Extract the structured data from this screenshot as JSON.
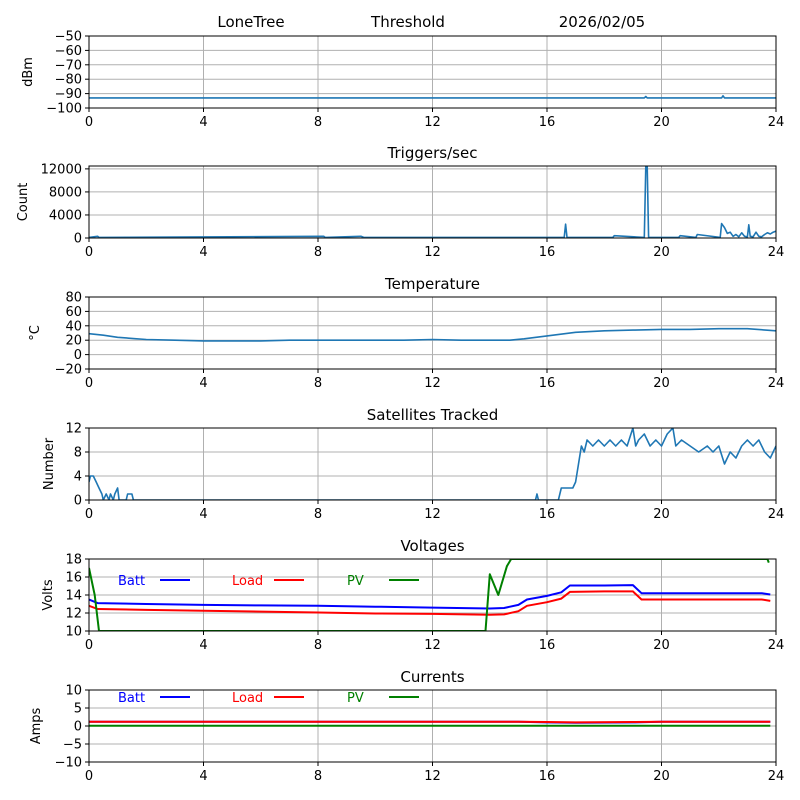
{
  "header": {
    "station": "LoneTree",
    "mode": "Threshold",
    "date": "2026/02/05"
  },
  "chart_data": [
    {
      "id": "signal",
      "type": "line",
      "title": "",
      "xlabel": "",
      "ylabel": "dBm",
      "xlim": [
        0,
        24
      ],
      "ylim": [
        -100,
        -50
      ],
      "xticks": [
        0,
        4,
        8,
        12,
        16,
        20,
        24
      ],
      "yticks": [
        -50,
        -60,
        -70,
        -80,
        -90,
        -100
      ],
      "ytick_labels": [
        "−50",
        "−60",
        "−70",
        "−80",
        "−90",
        "−100"
      ],
      "grid": true,
      "series": [
        {
          "name": "dBm",
          "color": "#1f77b4",
          "x": [
            0,
            19.4,
            19.45,
            19.5,
            22.1,
            22.15,
            22.2,
            24
          ],
          "y": [
            -93,
            -93,
            -92,
            -93,
            -93,
            -91.5,
            -93,
            -93
          ]
        }
      ]
    },
    {
      "id": "triggers",
      "type": "line",
      "title": "Triggers/sec",
      "xlabel": "",
      "ylabel": "Count",
      "xlim": [
        0,
        24
      ],
      "ylim": [
        0,
        12500
      ],
      "xticks": [
        0,
        4,
        8,
        12,
        16,
        20,
        24
      ],
      "yticks": [
        0,
        4000,
        8000,
        12000
      ],
      "ytick_labels": [
        "0",
        "4000",
        "8000",
        "12000"
      ],
      "grid": true,
      "series": [
        {
          "name": "Count",
          "color": "#1f77b4",
          "x": [
            0,
            0.3,
            0.35,
            8.2,
            8.25,
            9.5,
            9.6,
            16.6,
            16.65,
            16.7,
            18.3,
            18.35,
            19.4,
            19.45,
            19.5,
            19.55,
            20.6,
            20.65,
            21.2,
            21.25,
            22.05,
            22.1,
            22.2,
            22.3,
            22.4,
            22.5,
            22.6,
            22.7,
            22.8,
            22.9,
            23.0,
            23.05,
            23.1,
            23.2,
            23.3,
            23.4,
            23.5,
            23.6,
            23.7,
            23.8,
            23.9,
            24
          ],
          "y": [
            100,
            300,
            100,
            300,
            100,
            300,
            100,
            100,
            2400,
            100,
            100,
            400,
            100,
            12500,
            12500,
            100,
            100,
            400,
            100,
            600,
            100,
            2500,
            1800,
            800,
            1000,
            300,
            600,
            200,
            900,
            300,
            200,
            2300,
            300,
            200,
            1000,
            300,
            200,
            600,
            900,
            700,
            1000,
            1200
          ]
        }
      ]
    },
    {
      "id": "temperature",
      "type": "line",
      "title": "Temperature",
      "xlabel": "",
      "ylabel": "°C",
      "xlim": [
        0,
        24
      ],
      "ylim": [
        -20,
        80
      ],
      "xticks": [
        0,
        4,
        8,
        12,
        16,
        20,
        24
      ],
      "yticks": [
        80,
        60,
        40,
        20,
        0,
        -20
      ],
      "ytick_labels": [
        "80",
        "60",
        "40",
        "20",
        "0",
        "−20"
      ],
      "grid": true,
      "series": [
        {
          "name": "Temperature",
          "color": "#1f77b4",
          "x": [
            0,
            0.5,
            1,
            2,
            3,
            4,
            5,
            6,
            7,
            8,
            10,
            11,
            12,
            13,
            14,
            14.7,
            15.2,
            16,
            17,
            18,
            19,
            20,
            21,
            22,
            23,
            24
          ],
          "y": [
            29,
            27,
            24,
            21,
            20,
            19,
            19,
            19,
            20,
            20,
            20,
            20,
            21,
            20,
            20,
            20,
            22,
            26,
            31,
            33,
            34,
            35,
            35,
            36,
            36,
            33
          ]
        }
      ]
    },
    {
      "id": "satellites",
      "type": "line",
      "title": "Satellites Tracked",
      "xlabel": "",
      "ylabel": "Number",
      "xlim": [
        0,
        24
      ],
      "ylim": [
        0,
        12
      ],
      "xticks": [
        0,
        4,
        8,
        12,
        16,
        20,
        24
      ],
      "yticks": [
        0,
        4,
        8,
        12
      ],
      "ytick_labels": [
        "0",
        "4",
        "8",
        "12"
      ],
      "grid": true,
      "series": [
        {
          "name": "Satellites",
          "color": "#1f77b4",
          "x": [
            0,
            0.05,
            0.15,
            0.25,
            0.35,
            0.45,
            0.5,
            0.6,
            0.7,
            0.75,
            0.85,
            0.9,
            1.0,
            1.05,
            1.3,
            1.35,
            1.5,
            1.55,
            15.6,
            15.65,
            15.7,
            16.4,
            16.5,
            16.9,
            17.0,
            17.1,
            17.2,
            17.3,
            17.4,
            17.6,
            17.8,
            18.0,
            18.2,
            18.4,
            18.6,
            18.8,
            19.0,
            19.1,
            19.2,
            19.4,
            19.6,
            19.8,
            20.0,
            20.2,
            20.4,
            20.5,
            20.7,
            21.0,
            21.3,
            21.6,
            21.8,
            22.0,
            22.2,
            22.3,
            22.4,
            22.6,
            22.8,
            23.0,
            23.2,
            23.4,
            23.6,
            23.8,
            24
          ],
          "y": [
            3,
            4,
            4,
            3,
            2,
            1,
            0,
            1,
            0,
            1,
            0,
            1,
            2,
            0,
            0,
            1,
            1,
            0,
            0,
            1,
            0,
            0,
            2,
            2,
            3,
            6,
            9,
            8,
            10,
            9,
            10,
            9,
            10,
            9,
            10,
            9,
            12,
            9,
            10,
            11,
            9,
            10,
            9,
            11,
            12,
            9,
            10,
            9,
            8,
            9,
            8,
            9,
            6,
            7,
            8,
            7,
            9,
            10,
            9,
            10,
            8,
            7,
            9
          ]
        }
      ]
    },
    {
      "id": "voltages",
      "type": "line",
      "title": "Voltages",
      "xlabel": "",
      "ylabel": "Volts",
      "xlim": [
        0,
        24
      ],
      "ylim": [
        10,
        18
      ],
      "xticks": [
        0,
        4,
        8,
        12,
        16,
        20,
        24
      ],
      "yticks": [
        10,
        12,
        14,
        16,
        18
      ],
      "ytick_labels": [
        "10",
        "12",
        "14",
        "16",
        "18"
      ],
      "grid": true,
      "legend": {
        "placement": "top-left-inline"
      },
      "series": [
        {
          "name": "Batt",
          "color": "#0000ff",
          "x": [
            0,
            0.3,
            2,
            4,
            6,
            8,
            10,
            12,
            14,
            14.5,
            15.0,
            15.3,
            16.0,
            16.5,
            16.8,
            18.0,
            19.0,
            19.3,
            20,
            22,
            23.5,
            23.8
          ],
          "y": [
            13.5,
            13.1,
            13.0,
            12.9,
            12.85,
            12.8,
            12.7,
            12.6,
            12.5,
            12.55,
            12.9,
            13.5,
            13.9,
            14.3,
            15.05,
            15.05,
            15.1,
            14.2,
            14.2,
            14.2,
            14.2,
            14.05
          ]
        },
        {
          "name": "Load",
          "color": "#ff0000",
          "x": [
            0,
            0.3,
            2,
            4,
            6,
            8,
            10,
            12,
            14,
            14.5,
            15.0,
            15.3,
            16.0,
            16.5,
            16.8,
            18.0,
            19.0,
            19.3,
            20,
            22,
            23.5,
            23.8
          ],
          "y": [
            12.8,
            12.45,
            12.35,
            12.25,
            12.15,
            12.05,
            11.95,
            11.9,
            11.8,
            11.85,
            12.2,
            12.8,
            13.2,
            13.6,
            14.35,
            14.4,
            14.4,
            13.5,
            13.5,
            13.5,
            13.5,
            13.35
          ]
        },
        {
          "name": "PV",
          "color": "#008000",
          "x": [
            0,
            0.2,
            0.35,
            13.85,
            14.0,
            14.3,
            14.6,
            14.75,
            23.7,
            23.75
          ],
          "y": [
            17,
            14,
            10,
            10,
            16.3,
            14,
            17.2,
            18,
            18,
            17.6
          ]
        }
      ]
    },
    {
      "id": "currents",
      "type": "line",
      "title": "Currents",
      "xlabel": "",
      "ylabel": "Amps",
      "xlim": [
        0,
        24
      ],
      "ylim": [
        -10,
        10
      ],
      "xticks": [
        0,
        4,
        8,
        12,
        16,
        20,
        24
      ],
      "yticks": [
        10,
        5,
        0,
        -5,
        -10
      ],
      "ytick_labels": [
        "10",
        "5",
        "0",
        "−5",
        "−10"
      ],
      "grid": true,
      "legend": {
        "placement": "top-left-inline"
      },
      "series": [
        {
          "name": "Batt",
          "color": "#0000ff",
          "x": [
            0,
            15,
            16,
            17,
            19,
            20,
            23.8
          ],
          "y": [
            1.2,
            1.2,
            1.0,
            0.9,
            1.0,
            1.2,
            1.2
          ]
        },
        {
          "name": "Load",
          "color": "#ff0000",
          "x": [
            0,
            15,
            16,
            17,
            19,
            20,
            23.8
          ],
          "y": [
            1.2,
            1.2,
            1.1,
            1.0,
            1.1,
            1.2,
            1.2
          ]
        },
        {
          "name": "PV",
          "color": "#008000",
          "x": [
            0,
            23.8
          ],
          "y": [
            0.05,
            0.05
          ]
        }
      ]
    }
  ]
}
